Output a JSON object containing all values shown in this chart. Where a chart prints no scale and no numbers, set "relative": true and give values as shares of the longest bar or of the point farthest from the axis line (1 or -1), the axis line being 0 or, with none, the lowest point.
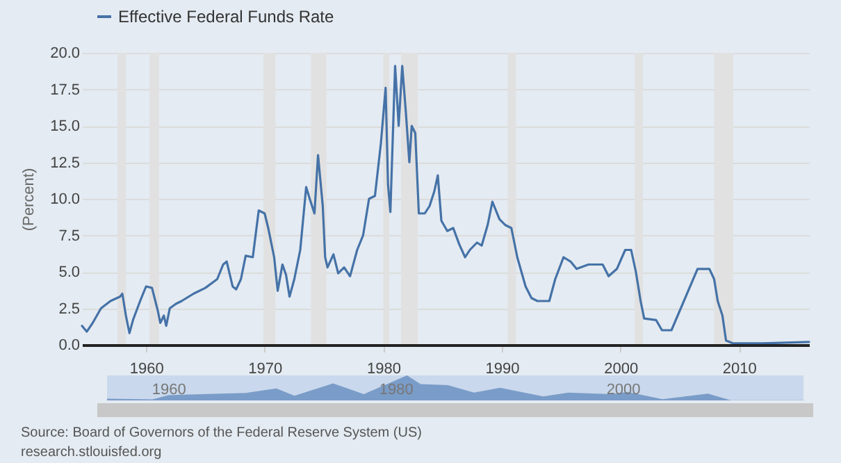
{
  "chart_data": [
    {
      "type": "line",
      "ylabel": "(Percent)",
      "legend": "top left",
      "grid": "y",
      "marker": "none",
      "line_style": "solid",
      "x": [
        1954.6,
        1955.0,
        1955.5,
        1956.2,
        1957.0,
        1957.8,
        1958.0,
        1958.3,
        1958.6,
        1958.9,
        1959.5,
        1960.0,
        1960.5,
        1961.0,
        1961.2,
        1961.5,
        1961.7,
        1962.0,
        1962.5,
        1963.0,
        1964.0,
        1965.0,
        1966.0,
        1966.5,
        1966.8,
        1967.3,
        1967.6,
        1968.0,
        1968.4,
        1969.0,
        1969.5,
        1970.0,
        1970.3,
        1970.8,
        1971.1,
        1971.5,
        1971.8,
        1972.1,
        1972.5,
        1973.0,
        1973.5,
        1973.8,
        1974.2,
        1974.5,
        1974.9,
        1975.1,
        1975.3,
        1975.8,
        1976.2,
        1976.7,
        1977.2,
        1977.8,
        1978.3,
        1978.8,
        1979.3,
        1979.8,
        1980.2,
        1980.4,
        1980.6,
        1981.0,
        1981.3,
        1981.6,
        1981.9,
        1982.2,
        1982.4,
        1982.7,
        1983.0,
        1983.5,
        1983.9,
        1984.3,
        1984.6,
        1984.9,
        1985.4,
        1985.9,
        1986.4,
        1986.9,
        1987.3,
        1987.9,
        1988.3,
        1988.8,
        1989.2,
        1989.8,
        1990.3,
        1990.8,
        1991.3,
        1992.0,
        1992.5,
        1993.0,
        1994.0,
        1994.5,
        1995.2,
        1995.8,
        1996.3,
        1997.3,
        1998.5,
        1999.0,
        1999.7,
        2000.4,
        2000.9,
        2001.3,
        2001.7,
        2002.0,
        2003.0,
        2003.5,
        2004.3,
        2006.5,
        2007.5,
        2007.9,
        2008.2,
        2008.6,
        2008.9,
        2009.5,
        2012.0,
        2015.9
      ],
      "series": [
        {
          "name": "Effective Federal Funds Rate",
          "color": "#4572a7",
          "values": [
            1.3,
            0.9,
            1.5,
            2.5,
            3.0,
            3.3,
            3.5,
            2.0,
            0.8,
            1.7,
            3.0,
            4.0,
            3.9,
            2.3,
            1.5,
            2.0,
            1.3,
            2.5,
            2.8,
            3.0,
            3.5,
            3.9,
            4.5,
            5.5,
            5.7,
            4.0,
            3.8,
            4.5,
            6.1,
            6.0,
            9.2,
            9.0,
            8.0,
            6.0,
            3.7,
            5.5,
            4.8,
            3.3,
            4.5,
            6.5,
            10.8,
            10.0,
            9.0,
            13.0,
            9.5,
            6.0,
            5.3,
            6.2,
            4.9,
            5.3,
            4.7,
            6.5,
            7.5,
            10.0,
            10.2,
            13.8,
            17.6,
            11.0,
            9.1,
            19.1,
            15.0,
            19.1,
            16.0,
            12.5,
            15.0,
            14.5,
            9.0,
            9.0,
            9.5,
            10.5,
            11.6,
            8.5,
            7.8,
            8.0,
            6.9,
            6.0,
            6.5,
            7.0,
            6.8,
            8.2,
            9.8,
            8.6,
            8.2,
            8.0,
            6.0,
            4.0,
            3.2,
            3.0,
            3.0,
            4.5,
            6.0,
            5.7,
            5.2,
            5.5,
            5.5,
            4.7,
            5.2,
            6.5,
            6.5,
            5.0,
            3.0,
            1.8,
            1.7,
            1.0,
            1.0,
            5.2,
            5.2,
            4.5,
            3.0,
            2.0,
            0.3,
            0.1,
            0.1,
            0.2
          ]
        }
      ],
      "xlim": [
        1954.6,
        2015.9
      ],
      "xticks": [
        1960,
        1970,
        1980,
        1990,
        2000,
        2010
      ],
      "ylim": [
        0,
        20
      ],
      "yticks": [
        {
          "value": 0,
          "label": "0.0"
        },
        {
          "value": 2.5,
          "label": "2.5"
        },
        {
          "value": 5,
          "label": "5.0"
        },
        {
          "value": 7.5,
          "label": "7.5"
        },
        {
          "value": 10,
          "label": "10.0"
        },
        {
          "value": 12.5,
          "label": "12.5"
        },
        {
          "value": 15,
          "label": "15.0"
        },
        {
          "value": 17.5,
          "label": "17.5"
        },
        {
          "value": 20,
          "label": "20.0"
        }
      ],
      "bands": [
        {
          "axis": "x",
          "from": 1957.6,
          "to": 1958.3,
          "color": "#e1e1e1"
        },
        {
          "axis": "x",
          "from": 1960.3,
          "to": 1961.1,
          "color": "#e1e1e1"
        },
        {
          "axis": "x",
          "from": 1969.9,
          "to": 1970.9,
          "color": "#e1e1e1"
        },
        {
          "axis": "x",
          "from": 1973.9,
          "to": 1975.2,
          "color": "#e1e1e1"
        },
        {
          "axis": "x",
          "from": 1980.0,
          "to": 1980.5,
          "color": "#e1e1e1"
        },
        {
          "axis": "x",
          "from": 1981.5,
          "to": 1982.9,
          "color": "#e1e1e1"
        },
        {
          "axis": "x",
          "from": 1990.5,
          "to": 1991.2,
          "color": "#e1e1e1"
        },
        {
          "axis": "x",
          "from": 2001.2,
          "to": 2001.9,
          "color": "#e1e1e1"
        },
        {
          "axis": "x",
          "from": 2007.9,
          "to": 2009.5,
          "color": "#e1e1e1"
        }
      ],
      "annotations": [
        "Source: Board of Governors of the Federal Reserve System (US)",
        "research.stlouisfed.org"
      ]
    },
    {
      "type": "area",
      "relative": true,
      "grid": false,
      "x": [
        1954.6,
        1958.6,
        1960.0,
        1966.8,
        1969.5,
        1971.1,
        1974.5,
        1977.2,
        1981.0,
        1982.2,
        1984.6,
        1986.9,
        1989.2,
        1993.0,
        1995.2,
        1999.0,
        2000.4,
        2003.5,
        2007.5,
        2009.5,
        2015.9
      ],
      "series": [
        {
          "color": "#7a9cc8",
          "values": [
            0.07,
            0.04,
            0.21,
            0.3,
            0.48,
            0.19,
            0.68,
            0.25,
            1,
            0.65,
            0.61,
            0.31,
            0.51,
            0.16,
            0.31,
            0.25,
            0.34,
            0.05,
            0.27,
            0.01,
            0.01
          ]
        }
      ],
      "xlim": [
        1954.6,
        2015.9
      ],
      "xticks": [
        1960,
        1980,
        2000
      ]
    }
  ]
}
